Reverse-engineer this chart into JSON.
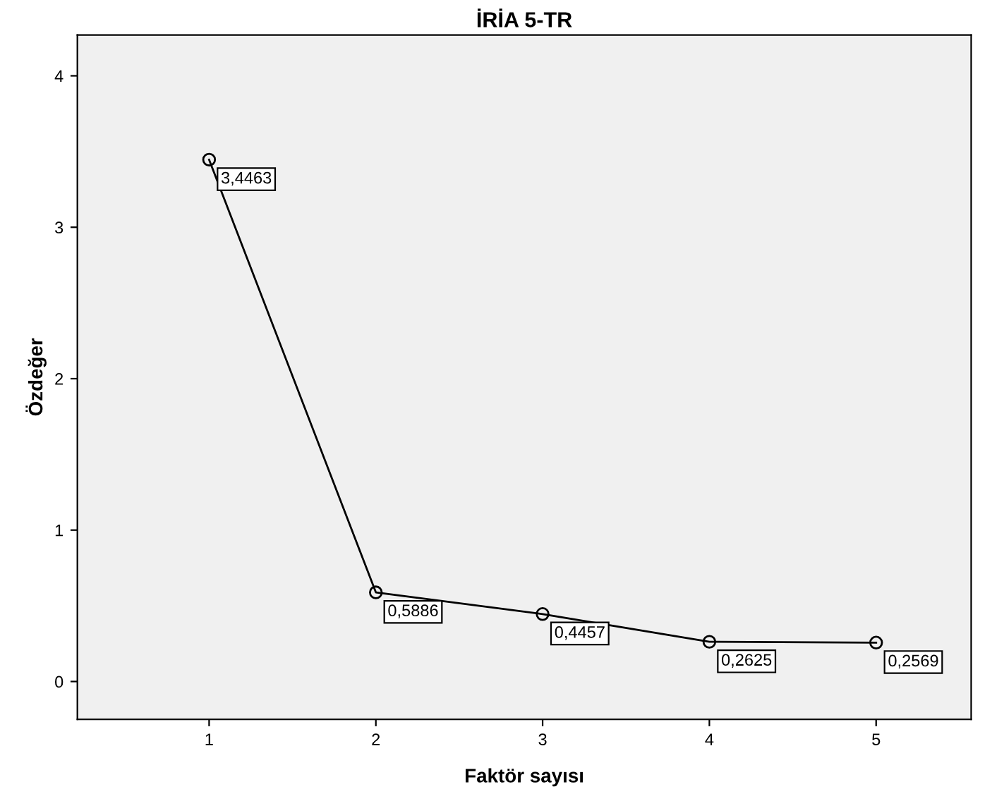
{
  "chart_data": {
    "type": "line",
    "title": "İRİA 5-TR",
    "xlabel": "Faktör sayısı",
    "ylabel": "Özdeğer",
    "x": [
      1,
      2,
      3,
      4,
      5
    ],
    "series": [
      {
        "color": "#000000",
        "values": [
          3.4463,
          0.5886,
          0.4457,
          0.2625,
          0.2569
        ],
        "value_labels": [
          "3,4463",
          "0,5886",
          "0,4457",
          "0,2625",
          "0,2569"
        ]
      }
    ],
    "xlim": [
      0.21,
      5.57
    ],
    "xticks": [
      1,
      2,
      3,
      4,
      5
    ],
    "ylim": [
      -0.25,
      4.27
    ],
    "yticks": [
      0,
      1,
      2,
      3,
      4
    ],
    "marker": "circle",
    "line_style": "solid",
    "grid": false,
    "legend": false
  }
}
